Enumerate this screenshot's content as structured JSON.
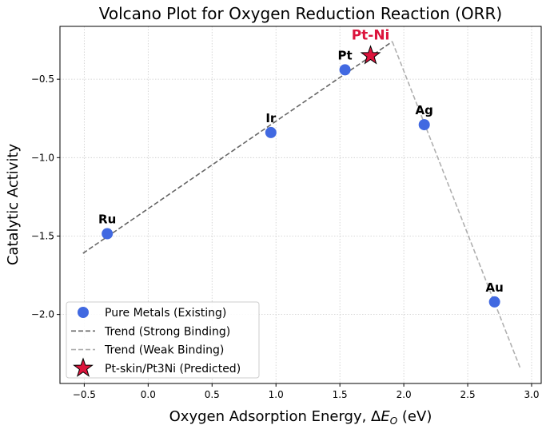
{
  "chart_data": {
    "type": "scatter",
    "title": "Volcano Plot for Oxygen Reduction Reaction (ORR)",
    "xlabel": "Oxygen Adsorption Energy, ΔE_O (eV)",
    "xlabel_parts": {
      "pre": "Oxygen Adsorption Energy, Δ",
      "var": "E",
      "sub": "O",
      "post": " (eV)"
    },
    "ylabel": "Catalytic Activity",
    "xlim": [
      -0.69,
      3.075
    ],
    "ylim": [
      -2.44,
      -0.163
    ],
    "xticks": [
      -0.5,
      0.0,
      0.5,
      1.0,
      1.5,
      2.0,
      2.5,
      3.0
    ],
    "xtick_labels": [
      "−0.5",
      "0.0",
      "0.5",
      "1.0",
      "1.5",
      "2.0",
      "2.5",
      "3.0"
    ],
    "yticks": [
      -0.5,
      -1.0,
      -1.5,
      -2.0
    ],
    "ytick_labels": [
      "−0.5",
      "−1.0",
      "−1.5",
      "−2.0"
    ],
    "grid": true,
    "legend_position": "lower-left",
    "series": [
      {
        "name": "Pure Metals (Existing)",
        "kind": "scatter",
        "color": "#4169e1",
        "points": [
          {
            "label": "Ru",
            "x": -0.32,
            "y": -1.485
          },
          {
            "label": "Ir",
            "x": 0.96,
            "y": -0.84
          },
          {
            "label": "Pt",
            "x": 1.54,
            "y": -0.44
          },
          {
            "label": "Ag",
            "x": 2.16,
            "y": -0.79
          },
          {
            "label": "Au",
            "x": 2.71,
            "y": -1.92
          }
        ]
      },
      {
        "name": "Trend (Strong Binding)",
        "kind": "line",
        "color": "#666666",
        "x": [
          -0.51,
          1.91
        ],
        "y": [
          -1.61,
          -0.26
        ]
      },
      {
        "name": "Trend (Weak Binding)",
        "kind": "line",
        "color": "#b0b0b0",
        "x": [
          1.91,
          2.91
        ],
        "y": [
          -0.26,
          -2.34
        ]
      },
      {
        "name": "Pt-skin/Pt3Ni (Predicted)",
        "kind": "star",
        "color": "#dc143c",
        "points": [
          {
            "label": "Pt-Ni",
            "x": 1.74,
            "y": -0.35
          }
        ]
      }
    ]
  }
}
